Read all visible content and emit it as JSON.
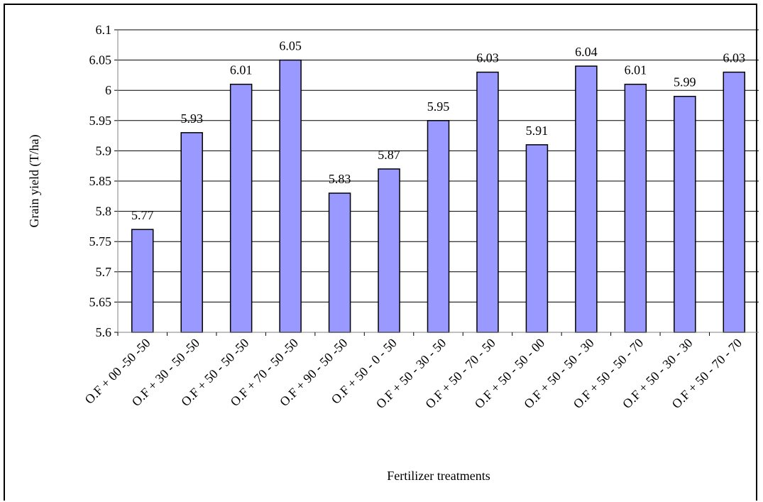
{
  "chart_data": {
    "type": "bar",
    "title": "",
    "xlabel": "Fertilizer treatments",
    "ylabel": "Grain yield (T/ha)",
    "ylim": [
      5.6,
      6.1
    ],
    "yticks": [
      "5.6",
      "5.65",
      "5.7",
      "5.75",
      "5.8",
      "5.85",
      "5.9",
      "5.95",
      "6",
      "6.05",
      "6.1"
    ],
    "grid": "horizontal",
    "legend": "none",
    "bar_color": "#9999ff",
    "categories": [
      "O.F + 00 -50 -50",
      "O.F + 30 - 50 -50",
      "O.F + 50 - 50 -50",
      "O.F + 70 - 50 -50",
      "O.F + 90 - 50 -50",
      "O.F + 50 - 0 - 50",
      "O.F + 50 - 30 - 50",
      "O.F + 50 - 70 - 50",
      "O.F + 50 - 50 - 00",
      "O.F + 50 - 50 - 30",
      "O.F + 50 - 50 - 70",
      "O.F + 50 - 30 - 30",
      "O.F + 50 - 70 - 70"
    ],
    "values": [
      5.77,
      5.93,
      6.01,
      6.05,
      5.83,
      5.87,
      5.95,
      6.03,
      5.91,
      6.04,
      6.01,
      5.99,
      6.03
    ],
    "data_labels": [
      "5.77",
      "5.93",
      "6.01",
      "6.05",
      "5.83",
      "5.87",
      "5.95",
      "6.03",
      "5.91",
      "6.04",
      "6.01",
      "5.99",
      "6.03"
    ]
  }
}
